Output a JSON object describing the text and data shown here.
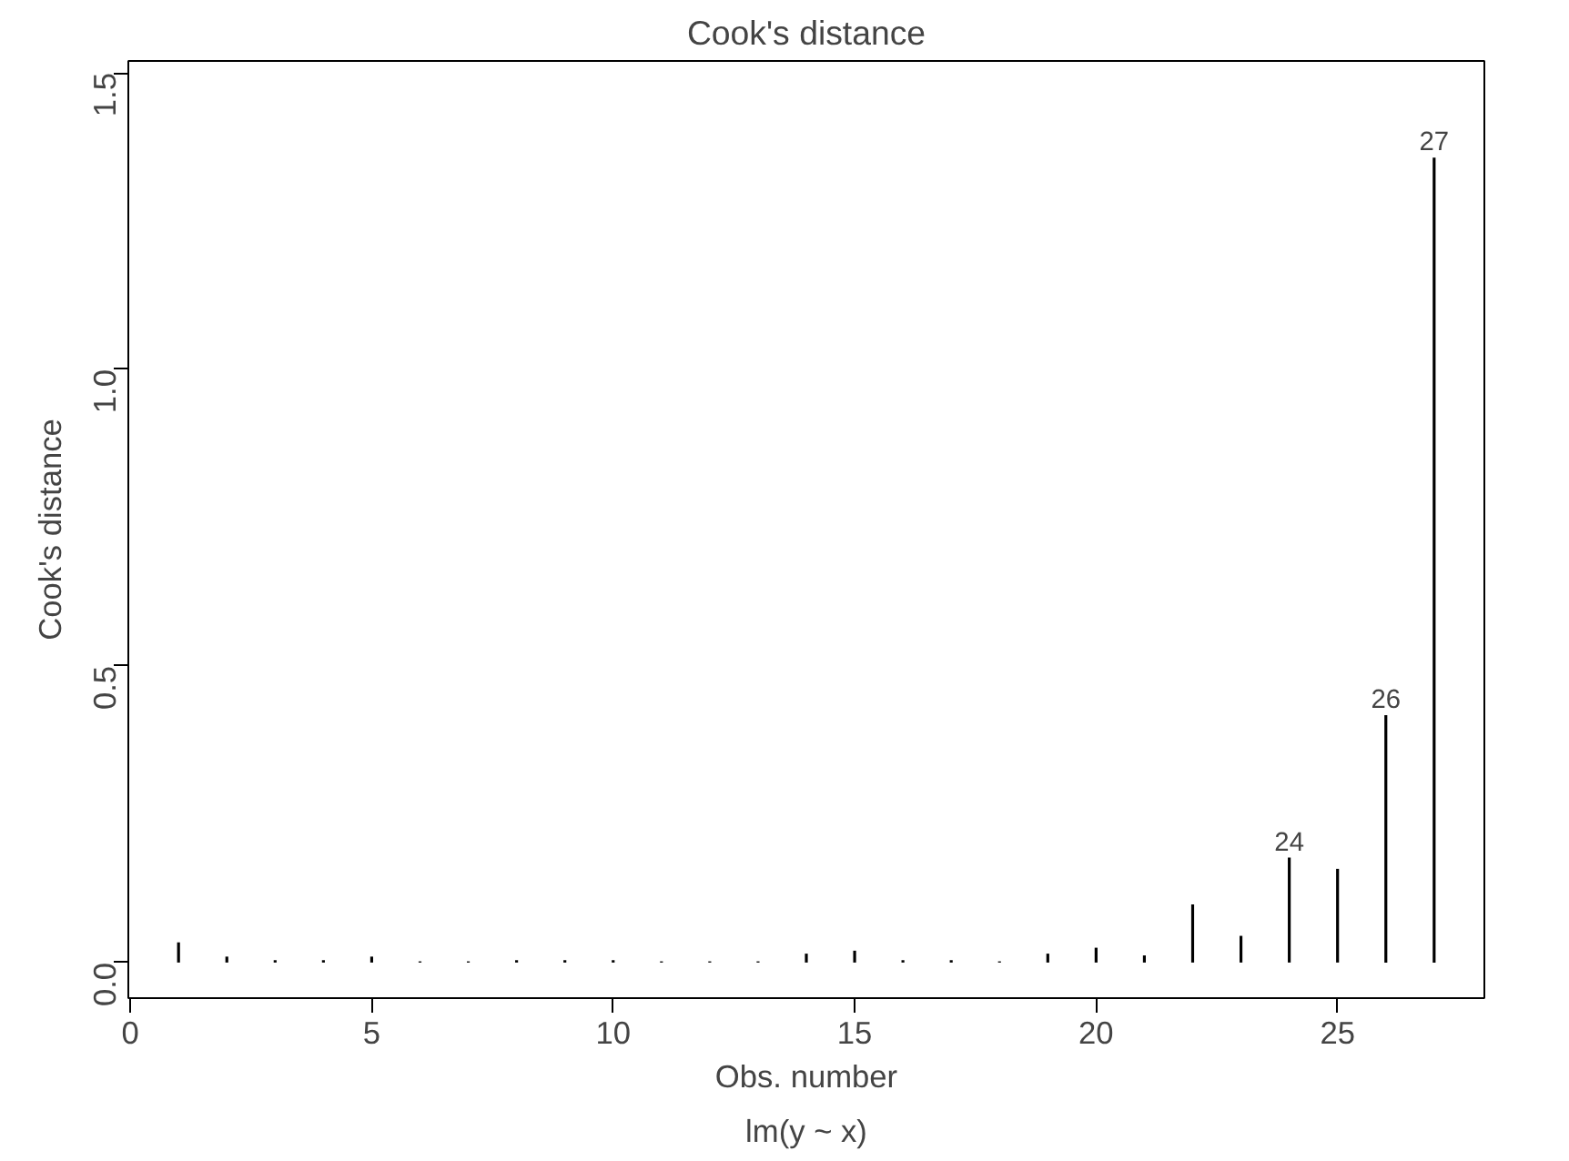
{
  "chart_data": {
    "type": "bar",
    "title": "Cook's distance",
    "xlabel": "Obs. number",
    "ylabel": "Cook's distance",
    "x": [
      1,
      2,
      3,
      4,
      5,
      6,
      7,
      8,
      9,
      10,
      11,
      12,
      13,
      14,
      15,
      16,
      17,
      18,
      19,
      20,
      21,
      22,
      23,
      24,
      25,
      26,
      27
    ],
    "values": [
      0.034,
      0.01,
      0.004,
      0.004,
      0.01,
      0.002,
      0.002,
      0.004,
      0.004,
      0.004,
      0.002,
      0.002,
      0.002,
      0.015,
      0.02,
      0.004,
      0.004,
      0.002,
      0.015,
      0.025,
      0.012,
      0.098,
      0.045,
      0.177,
      0.158,
      0.417,
      1.357
    ],
    "color": "#000000",
    "xlim": [
      -0.04,
      28.04
    ],
    "ylim": [
      -0.06,
      1.52
    ],
    "xticks": [
      0,
      5,
      10,
      15,
      20,
      25
    ],
    "yticks": [
      {
        "value": 0,
        "label": "0.0"
      },
      {
        "value": 0.5,
        "label": "0.5"
      },
      {
        "value": 1,
        "label": "1.0"
      },
      {
        "value": 1.5,
        "label": "1.5"
      }
    ],
    "annotations": [
      {
        "text": "24",
        "x": 24,
        "y": 0.177
      },
      {
        "text": "26",
        "x": 26,
        "y": 0.417
      },
      {
        "text": "27",
        "x": 27,
        "y": 1.357
      },
      "lm(y ~ x)"
    ],
    "grid": false
  }
}
